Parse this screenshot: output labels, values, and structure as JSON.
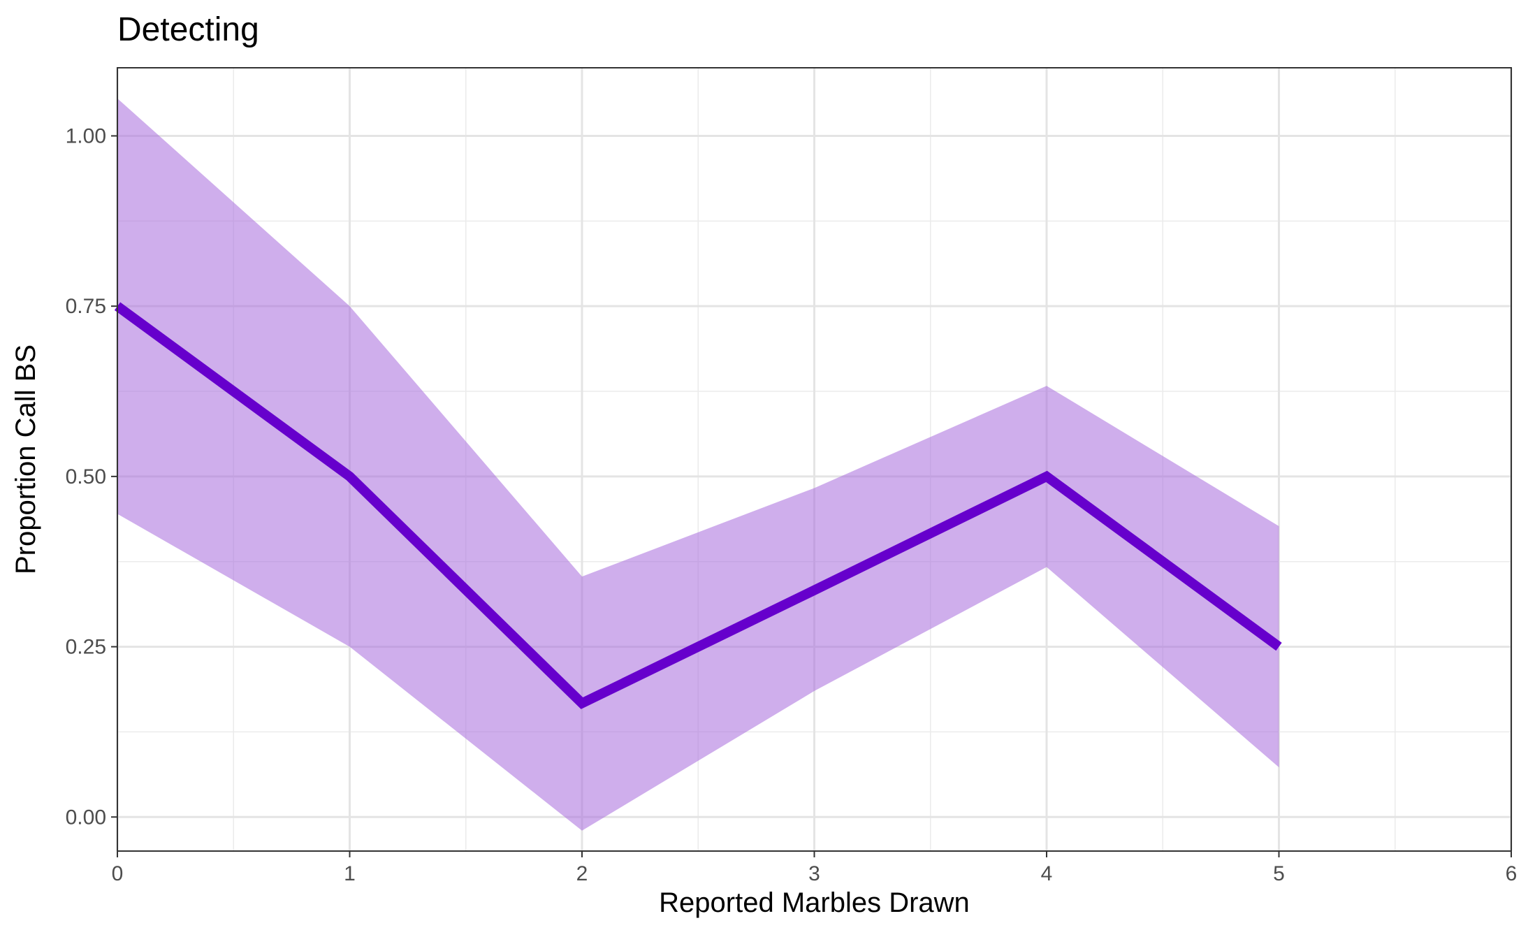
{
  "chart_data": {
    "type": "line",
    "title": "Detecting",
    "xlabel": "Reported Marbles Drawn",
    "ylabel": "Proportion Call BS",
    "xlim": [
      0,
      6
    ],
    "ylim": [
      -0.05,
      1.1
    ],
    "x_ticks": [
      0,
      1,
      2,
      3,
      4,
      5,
      6
    ],
    "x_tick_labels": [
      "0",
      "1",
      "2",
      "3",
      "4",
      "5",
      "6"
    ],
    "y_ticks": [
      0,
      0.25,
      0.5,
      0.75,
      1.0
    ],
    "y_tick_labels": [
      "0.00",
      "0.25",
      "0.50",
      "0.75",
      "1.00"
    ],
    "grid": true,
    "series": [
      {
        "x": [
          0,
          1,
          2,
          3,
          4,
          5
        ],
        "values": [
          0.75,
          0.5,
          0.167,
          0.333,
          0.5,
          0.25
        ],
        "ribbon_upper": [
          1.055,
          0.75,
          0.353,
          0.483,
          0.633,
          0.427
        ],
        "ribbon_lower": [
          0.445,
          0.25,
          -0.02,
          0.185,
          0.367,
          0.073
        ],
        "color": "#6600CC",
        "ribbon_color": "#A86BDD"
      }
    ]
  }
}
